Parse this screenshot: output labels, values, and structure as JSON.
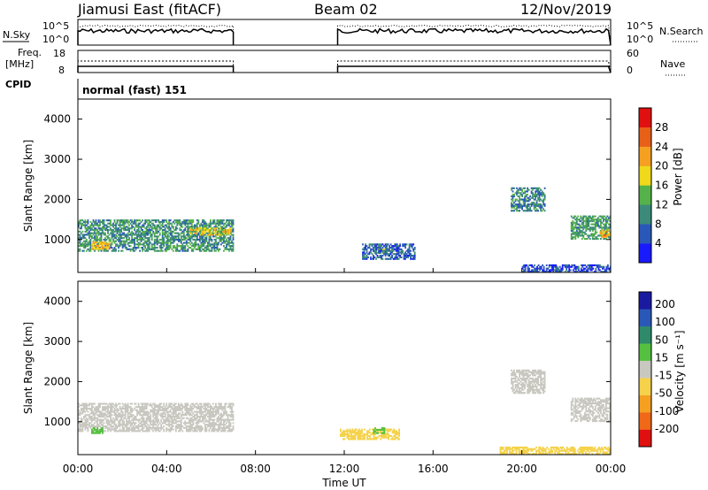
{
  "header": {
    "left": "Jiamusi East (fitACF)",
    "center": "Beam 02",
    "right": "12/Nov/2019"
  },
  "param_panel": {
    "nsky_label": "N.Sky",
    "nsearch_label": "N.Search",
    "noise_ticks_left": [
      "10^5",
      "10^0"
    ],
    "noise_ticks_right": [
      "10^5",
      "10^0"
    ],
    "freq_label_line1": "Freq.",
    "freq_label_line2": "[MHz]",
    "freq_ticks": [
      "18",
      "8"
    ],
    "nave_label": "Nave",
    "nave_ticks": [
      "60",
      "0"
    ],
    "cpid_label": "CPID",
    "cpid_value": "normal (fast) 151"
  },
  "colors": {
    "power_scale": [
      "#1a1aff",
      "#2a58b8",
      "#3c8a7a",
      "#55b24a",
      "#f0d81a",
      "#f5a020",
      "#e86018",
      "#e01010"
    ],
    "velocity_scale": [
      "#e01010",
      "#f06818",
      "#f5a020",
      "#f5d24a",
      "#c8c8c0",
      "#55c040",
      "#2e8a6a",
      "#2a58b8",
      "#1a1aa0"
    ]
  },
  "chart_data": [
    {
      "type": "heatmap",
      "name": "power",
      "ylabel": "Slant Range [km]",
      "xlabel": "",
      "ylim": [
        180,
        4500
      ],
      "yticks": [
        "1000",
        "2000",
        "3000",
        "4000"
      ],
      "colorbar": {
        "label": "Power [dB]",
        "ticks": [
          "28",
          "24",
          "20",
          "16",
          "12",
          "8",
          "4"
        ],
        "range": [
          0,
          30
        ]
      },
      "regions": [
        {
          "t0": 0.0,
          "t1": 7.0,
          "r0": 700,
          "r1": 1500,
          "value": 10
        },
        {
          "t0": 0.6,
          "t1": 1.4,
          "r0": 750,
          "r1": 950,
          "value": 19
        },
        {
          "t0": 5.0,
          "t1": 6.9,
          "r0": 1100,
          "r1": 1300,
          "value": 17
        },
        {
          "t0": 13.3,
          "t1": 13.9,
          "r0": 650,
          "r1": 850,
          "value": 14
        },
        {
          "t0": 19.5,
          "t1": 21.0,
          "r0": 1700,
          "r1": 2300,
          "value": 9
        },
        {
          "t0": 22.2,
          "t1": 24.0,
          "r0": 1000,
          "r1": 1600,
          "value": 11
        },
        {
          "t0": 23.5,
          "t1": 24.0,
          "r0": 1050,
          "r1": 1250,
          "value": 20
        },
        {
          "t0": 12.8,
          "t1": 15.2,
          "r0": 500,
          "r1": 900,
          "value": 6
        },
        {
          "t0": 20.0,
          "t1": 24.0,
          "r0": 180,
          "r1": 350,
          "value": 5
        }
      ]
    },
    {
      "type": "heatmap",
      "name": "velocity",
      "ylabel": "Slant Range [km]",
      "xlabel": "Time UT",
      "ylim": [
        180,
        4500
      ],
      "yticks": [
        "1000",
        "2000",
        "3000",
        "4000"
      ],
      "xticks": [
        "00:00",
        "04:00",
        "08:00",
        "12:00",
        "16:00",
        "20:00",
        "00:00"
      ],
      "colorbar": {
        "label": "Velocity [m s⁻¹]",
        "ticks": [
          "200",
          "100",
          "50",
          "15",
          "-15",
          "-50",
          "-100",
          "-200"
        ]
      },
      "regions": [
        {
          "t0": 0.0,
          "t1": 7.0,
          "r0": 750,
          "r1": 1450,
          "value": 0
        },
        {
          "t0": 0.6,
          "t1": 1.1,
          "r0": 700,
          "r1": 850,
          "value": 30
        },
        {
          "t0": 11.8,
          "t1": 14.5,
          "r0": 550,
          "r1": 800,
          "value": -40
        },
        {
          "t0": 13.3,
          "t1": 13.8,
          "r0": 700,
          "r1": 850,
          "value": 30
        },
        {
          "t0": 19.5,
          "t1": 21.0,
          "r0": 1700,
          "r1": 2300,
          "value": 0
        },
        {
          "t0": 22.2,
          "t1": 24.0,
          "r0": 1000,
          "r1": 1600,
          "value": 0
        },
        {
          "t0": 19.0,
          "t1": 24.0,
          "r0": 180,
          "r1": 380,
          "value": -40
        }
      ]
    }
  ],
  "data_gaps": [
    [
      7.0,
      11.7
    ]
  ]
}
